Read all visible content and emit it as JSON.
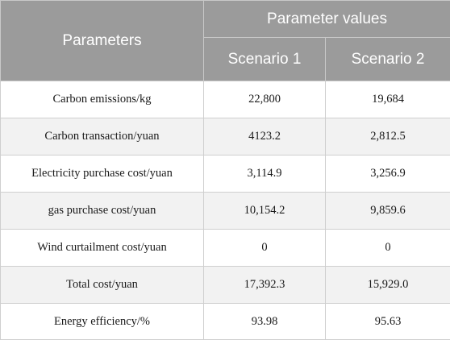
{
  "table": {
    "header_parameters": "Parameters",
    "header_values": "Parameter values",
    "scenario_1": "Scenario 1",
    "scenario_2": "Scenario 2",
    "rows": [
      {
        "parameter": "Carbon emissions/kg",
        "s1": "22,800",
        "s2": "19,684"
      },
      {
        "parameter": "Carbon transaction/yuan",
        "s1": "4123.2",
        "s2": "2,812.5"
      },
      {
        "parameter": "Electricity purchase cost/yuan",
        "s1": "3,114.9",
        "s2": "3,256.9"
      },
      {
        "parameter": "gas purchase cost/yuan",
        "s1": "10,154.2",
        "s2": "9,859.6"
      },
      {
        "parameter": "Wind curtailment cost/yuan",
        "s1": "0",
        "s2": "0"
      },
      {
        "parameter": "Total cost/yuan",
        "s1": "17,392.3",
        "s2": "15,929.0"
      },
      {
        "parameter": "Energy efficiency/%",
        "s1": "93.98",
        "s2": "95.63"
      }
    ]
  },
  "colors": {
    "header_bg": "#9b9b9b",
    "header_text": "#ffffff",
    "stripe_bg": "#f2f2f2"
  }
}
